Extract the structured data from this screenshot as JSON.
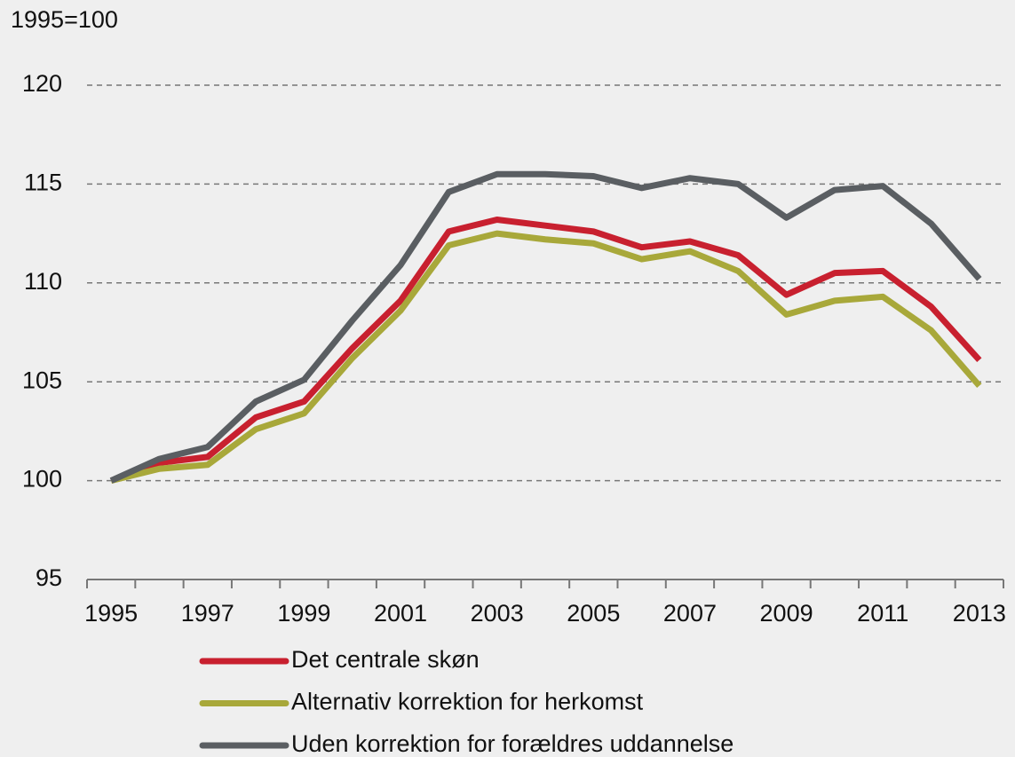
{
  "chart_data": {
    "type": "line",
    "annotation": "1995=100",
    "categories": [
      "1995",
      null,
      "1997",
      null,
      "1999",
      null,
      "2001",
      null,
      "2003",
      null,
      "2005",
      null,
      "2007",
      null,
      "2009",
      null,
      "2011",
      null,
      "2013"
    ],
    "series": [
      {
        "name": "Det centrale skøn",
        "color": "#c8202f",
        "values": [
          100,
          100.9,
          101.2,
          103.2,
          104.0,
          106.7,
          109.1,
          112.6,
          113.2,
          112.9,
          112.6,
          111.8,
          112.1,
          111.4,
          109.4,
          110.5,
          110.6,
          108.8,
          106.1
        ]
      },
      {
        "name": "Alternativ korrektion for herkomst",
        "color": "#a8a83a",
        "values": [
          100,
          100.6,
          100.8,
          102.6,
          103.4,
          106.2,
          108.6,
          111.9,
          112.5,
          112.2,
          112.0,
          111.2,
          111.6,
          110.6,
          108.4,
          109.1,
          109.3,
          107.6,
          104.8
        ]
      },
      {
        "name": "Uden korrektion for forældres uddannelse",
        "color": "#5a5e62",
        "values": [
          100,
          101.1,
          101.7,
          104.0,
          105.1,
          108.1,
          110.9,
          114.6,
          115.5,
          115.5,
          115.4,
          114.8,
          115.3,
          115.0,
          113.3,
          114.7,
          114.9,
          113.0,
          110.2
        ]
      }
    ],
    "ylim": [
      95,
      120
    ],
    "yticks": [
      95,
      100,
      105,
      110,
      115,
      120
    ],
    "grid": true
  }
}
